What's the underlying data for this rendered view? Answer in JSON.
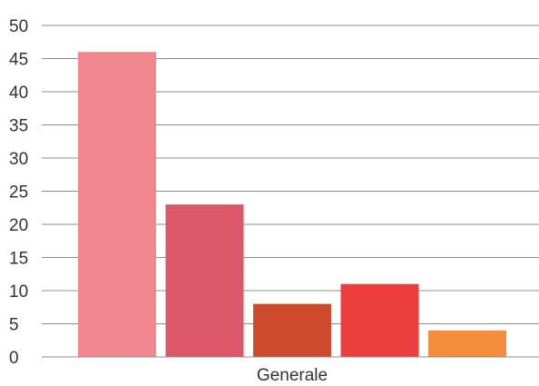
{
  "chart_data": {
    "type": "bar",
    "categories": [
      "Generale"
    ],
    "series": [
      {
        "values": [
          46
        ],
        "color": "#f2888f"
      },
      {
        "values": [
          23
        ],
        "color": "#db5868"
      },
      {
        "values": [
          8
        ],
        "color": "#cd4b2c"
      },
      {
        "values": [
          11
        ],
        "color": "#ec3e3d"
      },
      {
        "values": [
          4
        ],
        "color": "#f48e3c"
      }
    ],
    "ylim": [
      0,
      50
    ],
    "yticks": [
      0,
      5,
      10,
      15,
      20,
      25,
      30,
      35,
      40,
      45,
      50
    ],
    "grid": true,
    "legend": "none",
    "title": "",
    "xlabel": "",
    "ylabel": ""
  }
}
